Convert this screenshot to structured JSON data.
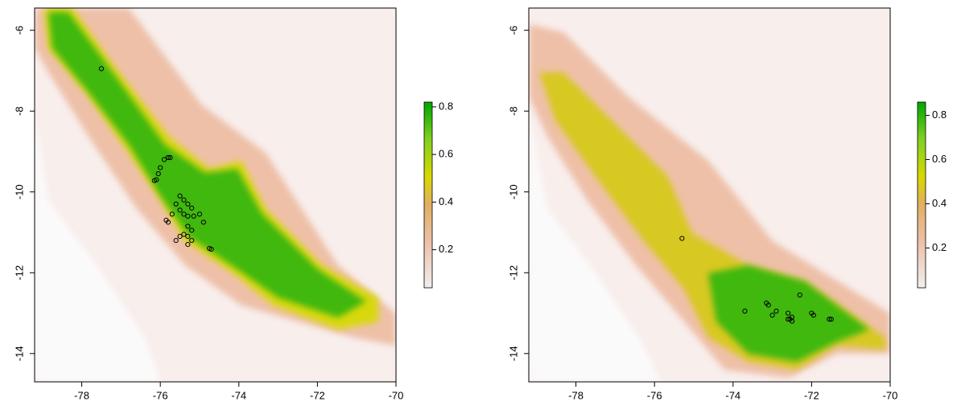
{
  "chart_data": [
    {
      "type": "map",
      "xlim": [
        -79.2,
        -70
      ],
      "ylim": [
        -14.7,
        -5.45
      ],
      "xticks": [
        -78,
        -76,
        -74,
        -72,
        -70
      ],
      "yticks": [
        -6,
        -8,
        -10,
        -12,
        -14
      ],
      "colorbar": {
        "zlim": [
          0.04,
          0.82
        ],
        "ticks": [
          0.2,
          0.4,
          0.6,
          0.8
        ]
      },
      "points": {
        "color": "#000000",
        "x": [
          -77.5,
          -75.8,
          -75.75,
          -75.9,
          -76.0,
          -76.05,
          -76.1,
          -76.15,
          -75.5,
          -75.4,
          -75.3,
          -75.6,
          -75.5,
          -75.2,
          -75.4,
          -75.3,
          -75.15,
          -75.7,
          -75.85,
          -75.8,
          -75.0,
          -74.9,
          -75.3,
          -75.2,
          -75.4,
          -75.5,
          -75.6,
          -75.3,
          -75.2,
          -75.3,
          -74.75,
          -74.7
        ],
        "y": [
          -6.95,
          -9.15,
          -9.15,
          -9.2,
          -9.4,
          -9.55,
          -9.7,
          -9.72,
          -10.1,
          -10.2,
          -10.3,
          -10.3,
          -10.45,
          -10.4,
          -10.55,
          -10.6,
          -10.6,
          -10.55,
          -10.7,
          -10.75,
          -10.55,
          -10.75,
          -10.85,
          -10.95,
          -11.05,
          -11.1,
          -11.2,
          -11.1,
          -11.2,
          -11.3,
          -11.4,
          -11.42
        ]
      }
    },
    {
      "type": "map",
      "xlim": [
        -79.2,
        -70
      ],
      "ylim": [
        -14.7,
        -5.45
      ],
      "xticks": [
        -78,
        -76,
        -74,
        -72,
        -70
      ],
      "yticks": [
        -6,
        -8,
        -10,
        -12,
        -14
      ],
      "colorbar": {
        "zlim": [
          0.02,
          0.86
        ],
        "ticks": [
          0.2,
          0.4,
          0.6,
          0.8
        ]
      },
      "points": {
        "color": "#000000",
        "x": [
          -75.3,
          -73.7,
          -73.15,
          -73.1,
          -72.9,
          -73.0,
          -72.6,
          -72.5,
          -72.6,
          -72.5,
          -72.55,
          -72.3,
          -72.0,
          -71.95,
          -71.5,
          -71.55
        ],
        "y": [
          -11.15,
          -12.95,
          -12.75,
          -12.8,
          -12.95,
          -13.05,
          -13.0,
          -13.1,
          -13.15,
          -13.2,
          -13.15,
          -12.55,
          -13.0,
          -13.05,
          -13.15,
          -13.15
        ]
      }
    }
  ]
}
